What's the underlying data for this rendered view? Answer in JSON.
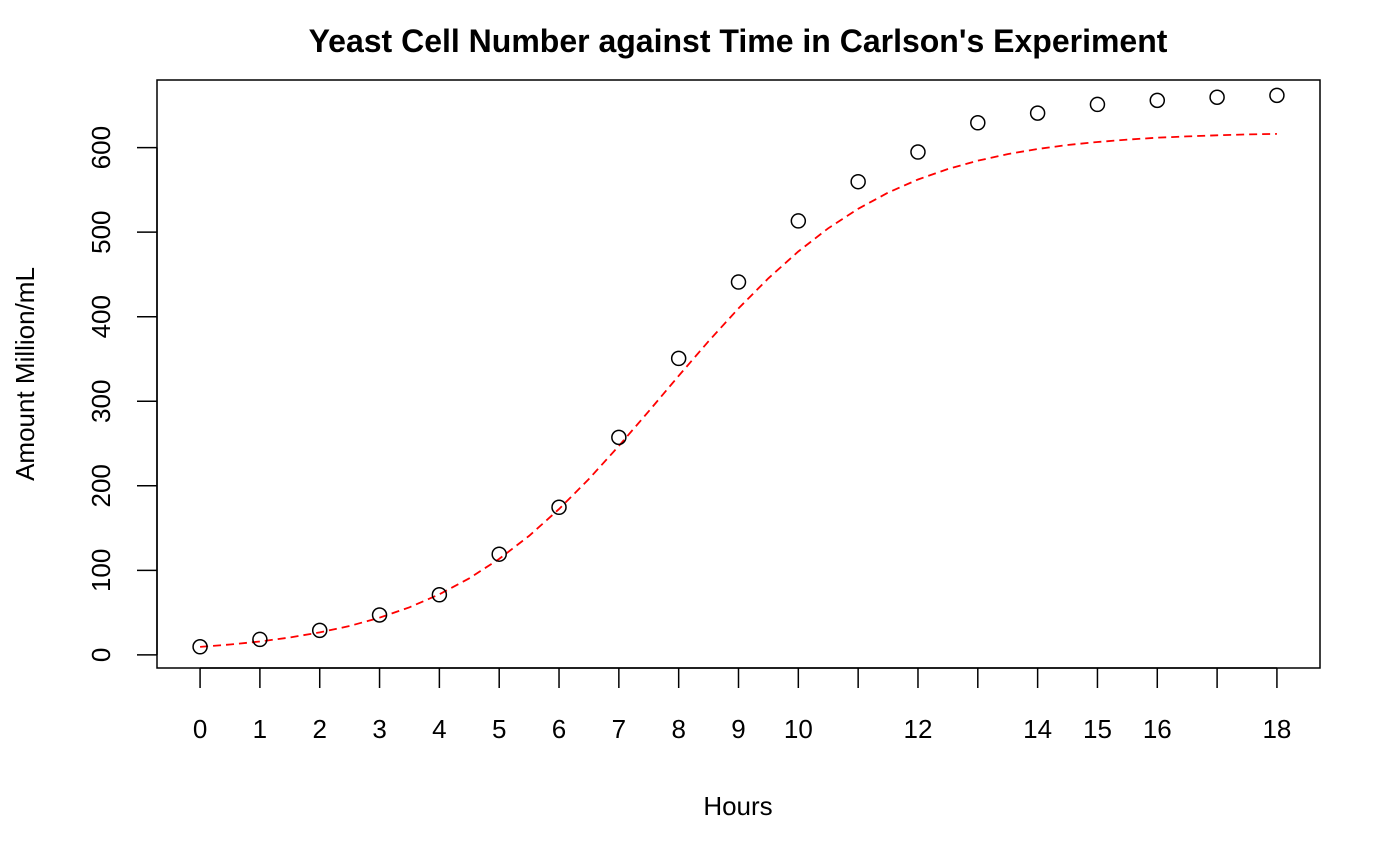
{
  "chart_data": {
    "type": "scatter",
    "title": "Yeast Cell Number against Time in Carlson's Experiment",
    "xlabel": "Hours",
    "ylabel": "Amount Million/mL",
    "xlim": [
      -0.72,
      18.72
    ],
    "ylim": [
      -15.5,
      680
    ],
    "x_ticks": [
      0,
      1,
      2,
      3,
      4,
      5,
      6,
      7,
      8,
      9,
      10,
      11,
      12,
      13,
      14,
      15,
      16,
      17,
      18
    ],
    "x_tick_labels": [
      "0",
      "1",
      "2",
      "3",
      "4",
      "5",
      "6",
      "7",
      "8",
      "9",
      "10",
      "",
      "12",
      "",
      "14",
      "15",
      "16",
      "",
      "18"
    ],
    "y_ticks": [
      0,
      100,
      200,
      300,
      400,
      500,
      600
    ],
    "y_tick_labels": [
      "0",
      "100",
      "200",
      "300",
      "400",
      "500",
      "600"
    ],
    "grid": false,
    "series": [
      {
        "type": "scatter",
        "marker": "open-circle",
        "color": "#000000",
        "x": [
          0,
          1,
          2,
          3,
          4,
          5,
          6,
          7,
          8,
          9,
          10,
          11,
          12,
          13,
          14,
          15,
          16,
          17,
          18
        ],
        "y": [
          9.6,
          18.3,
          29.0,
          47.2,
          71.1,
          119.1,
          174.6,
          257.3,
          350.7,
          441.0,
          513.3,
          559.7,
          594.8,
          629.4,
          640.8,
          651.1,
          655.9,
          659.6,
          661.8
        ]
      },
      {
        "type": "line",
        "style": "dashed",
        "color": "#ff0000",
        "x": [
          0,
          0.5,
          1,
          1.5,
          2,
          2.5,
          3,
          3.5,
          4,
          4.5,
          5,
          5.5,
          6,
          6.5,
          7,
          7.5,
          8,
          8.5,
          9,
          9.5,
          10,
          10.5,
          11,
          11.5,
          12,
          12.5,
          13,
          13.5,
          14,
          14.5,
          15,
          15.5,
          16,
          16.5,
          17,
          17.5,
          18
        ],
        "y": [
          9.5,
          12.3,
          15.9,
          20.6,
          26.6,
          34.2,
          44.0,
          56.3,
          71.7,
          90.6,
          113.5,
          140.8,
          172.4,
          208.1,
          247.1,
          288.3,
          330.1,
          371.1,
          409.9,
          445.5,
          477.2,
          504.6,
          527.7,
          546.8,
          562.3,
          574.7,
          584.6,
          592.3,
          598.4,
          603.1,
          606.7,
          609.5,
          611.7,
          613.3,
          614.6,
          615.6,
          616.3
        ]
      }
    ]
  }
}
